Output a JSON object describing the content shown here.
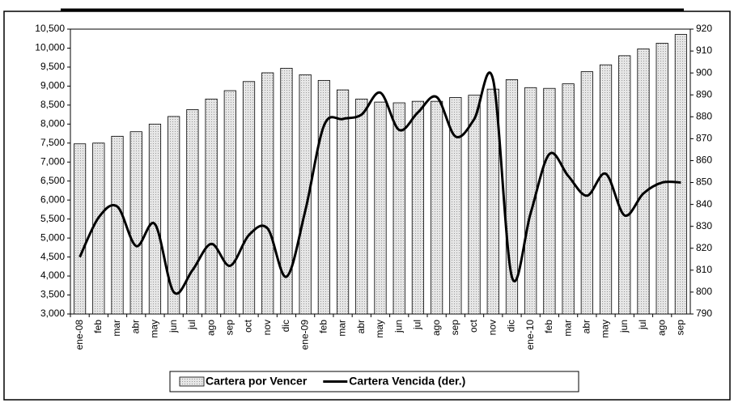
{
  "chart_data": {
    "type": "bar_line",
    "categories": [
      "ene-08",
      "feb",
      "mar",
      "abr",
      "may",
      "jun",
      "jul",
      "ago",
      "sep",
      "oct",
      "nov",
      "dic",
      "ene-09",
      "feb",
      "mar",
      "abr",
      "may",
      "jun",
      "jul",
      "ago",
      "sep",
      "oct",
      "nov",
      "dic",
      "ene-10",
      "feb",
      "mar",
      "abr",
      "may",
      "jun",
      "jul",
      "ago",
      "sep"
    ],
    "series": [
      {
        "name": "Cartera por Vencer",
        "type": "bar",
        "color": "#d9d9d9",
        "values": [
          7480,
          7500,
          7680,
          7800,
          8000,
          8200,
          8380,
          8660,
          8880,
          9120,
          9350,
          9470,
          9300,
          9150,
          8900,
          8660,
          8580,
          8560,
          8600,
          8600,
          8700,
          8760,
          8920,
          9170,
          8960,
          8940,
          9060,
          9380,
          9560,
          9800,
          9980,
          10130,
          10360
        ]
      },
      {
        "name": "Cartera Vencida (der.)",
        "type": "line",
        "color": "#000000",
        "axis": "y2",
        "values": [
          816,
          834,
          839,
          821,
          831,
          800,
          810,
          822,
          812,
          826,
          829,
          807,
          837,
          876,
          879,
          881,
          891,
          874,
          882,
          889,
          871,
          879,
          897,
          807,
          836,
          863,
          853,
          844,
          854,
          835,
          845,
          850,
          850
        ]
      }
    ],
    "ylim": [
      3000,
      10500
    ],
    "yticks": [
      {
        "value": 3000,
        "label": "3,000"
      },
      {
        "value": 3500,
        "label": "3,500"
      },
      {
        "value": 4000,
        "label": "4,000"
      },
      {
        "value": 4500,
        "label": "4,500"
      },
      {
        "value": 5000,
        "label": "5,000"
      },
      {
        "value": 5500,
        "label": "5,500"
      },
      {
        "value": 6000,
        "label": "6,000"
      },
      {
        "value": 6500,
        "label": "6,500"
      },
      {
        "value": 7000,
        "label": "7,000"
      },
      {
        "value": 7500,
        "label": "7,500"
      },
      {
        "value": 8000,
        "label": "8,000"
      },
      {
        "value": 8500,
        "label": "8,500"
      },
      {
        "value": 9000,
        "label": "9,000"
      },
      {
        "value": 9500,
        "label": "9,500"
      },
      {
        "value": 10000,
        "label": "10,000"
      },
      {
        "value": 10500,
        "label": "10,500"
      }
    ],
    "y2lim": [
      790,
      920
    ],
    "y2ticks": [
      790,
      800,
      810,
      820,
      830,
      840,
      850,
      860,
      870,
      880,
      890,
      900,
      910,
      920
    ],
    "legend": "bottom"
  }
}
